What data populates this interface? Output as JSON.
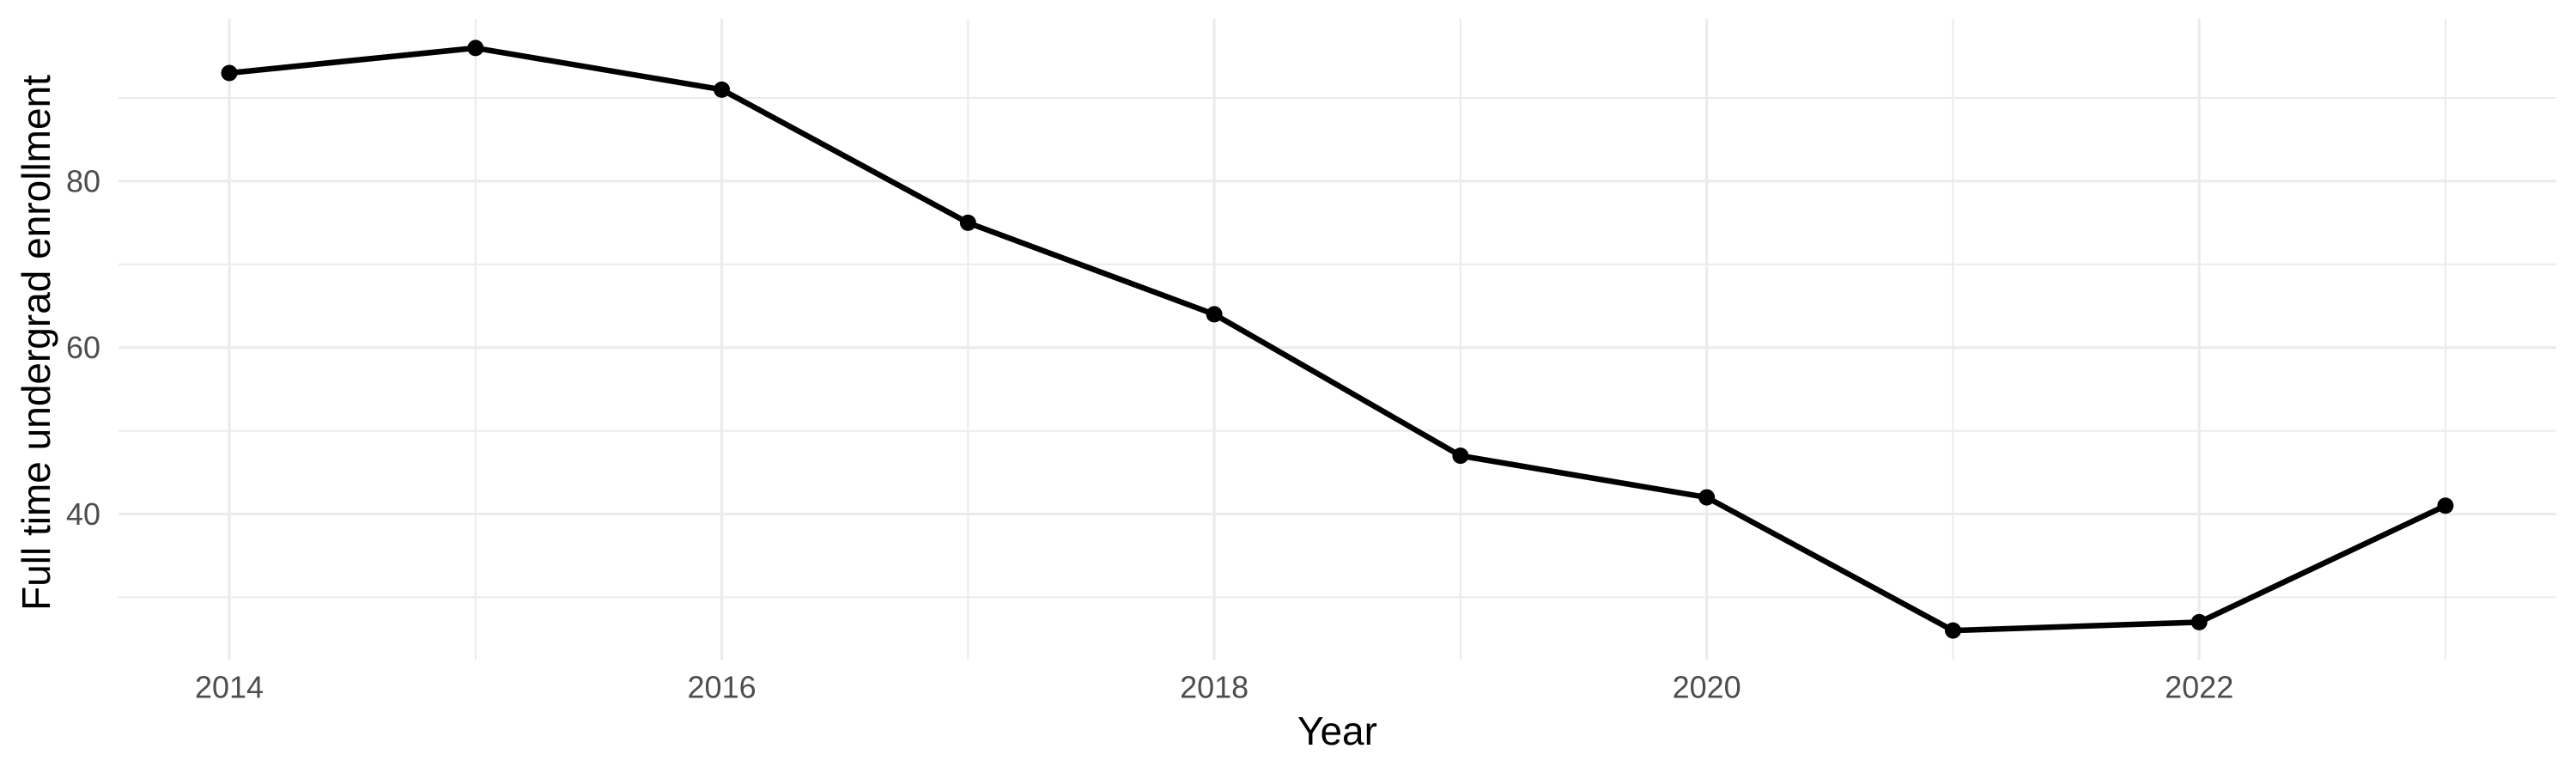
{
  "chart_data": {
    "type": "line",
    "xlabel": "Year",
    "ylabel": "Full time undergrad enrollment",
    "x": [
      2014,
      2015,
      2016,
      2017,
      2018,
      2019,
      2020,
      2021,
      2022,
      2023
    ],
    "values": [
      93,
      96,
      91,
      75,
      64,
      47,
      42,
      26,
      27,
      41
    ],
    "x_axis": {
      "domain": [
        2013.55,
        2023.45
      ],
      "major_ticks": [
        2014,
        2016,
        2018,
        2020,
        2022
      ],
      "tick_labels": [
        "2014",
        "2016",
        "2018",
        "2020",
        "2022"
      ],
      "minor_gridlines": [
        2015,
        2017,
        2019,
        2021,
        2023
      ]
    },
    "y_axis": {
      "domain": [
        22.5,
        99.5
      ],
      "major_ticks": [
        40,
        60,
        80
      ],
      "tick_labels": [
        "40",
        "60",
        "80"
      ],
      "minor_gridlines": [
        30,
        50,
        70,
        90
      ]
    },
    "grid": true,
    "legend": false,
    "marker": "filled-circle",
    "colors": {
      "background": "#ffffff",
      "panel_background": "#ffffff",
      "gridline": "#ebebeb",
      "line": "#000000",
      "point": "#000000",
      "tick_label": "#4d4d4d",
      "axis_title": "#000000"
    }
  }
}
